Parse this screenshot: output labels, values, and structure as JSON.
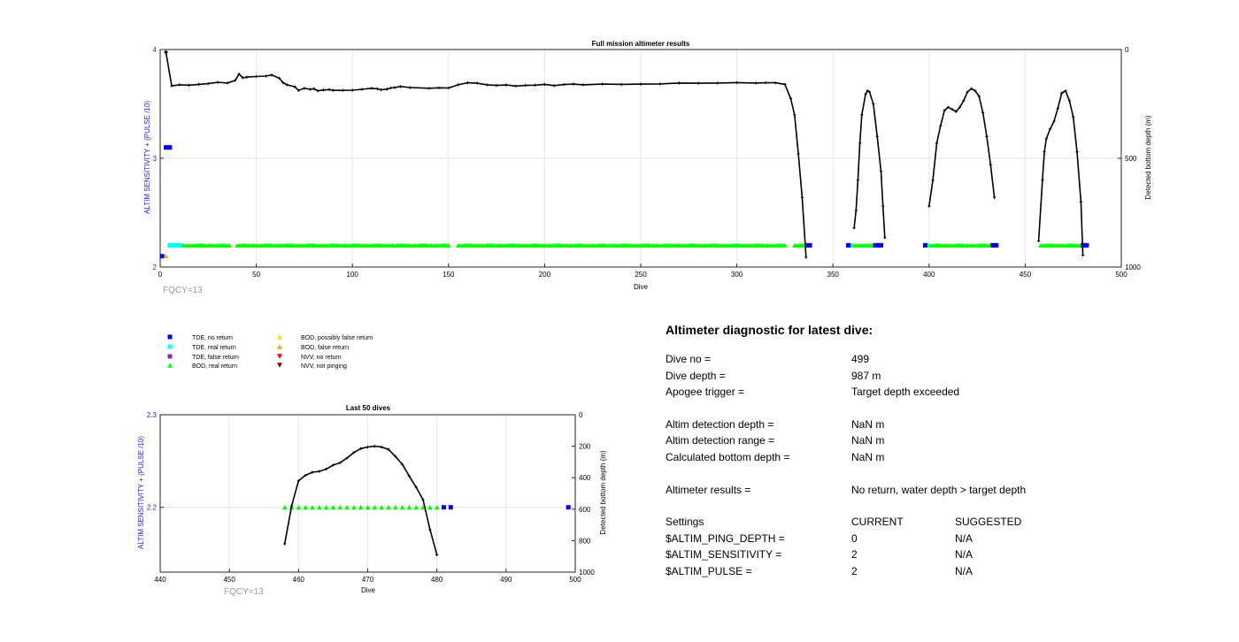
{
  "chart_data": [
    {
      "type": "scatter",
      "title": "Full mission altimeter results",
      "xlabel": "Dive",
      "ylabel": "ALTIM SENSITIVITY + (PULSE /10)",
      "y2label": "Detected bottom depth (m)",
      "xlim": [
        0,
        500
      ],
      "ylim": [
        2,
        4
      ],
      "y2lim": [
        0,
        1000
      ],
      "y2_reversed": true,
      "xticks": [
        0,
        50,
        100,
        150,
        200,
        250,
        300,
        350,
        400,
        450,
        500
      ],
      "yticks": [
        2,
        3,
        4
      ],
      "y2ticks": [
        0,
        500,
        1000
      ],
      "grid": true,
      "annotation": "FQCY=13",
      "colors": {
        "tde_no_return": "#0000ff",
        "tde_real_return": "#00ffff",
        "bod_real_return": "#00ff00",
        "bod_false_return": "#ffa500",
        "bottom_depth_line": "#000000"
      },
      "tde_no_return": [
        [
          1,
          2.1
        ],
        [
          3,
          3.1
        ],
        [
          4,
          3.1
        ],
        [
          5,
          3.1
        ],
        [
          337,
          2.2
        ],
        [
          338,
          2.2
        ],
        [
          358,
          2.2
        ],
        [
          372,
          2.2
        ],
        [
          373,
          2.2
        ],
        [
          374,
          2.2
        ],
        [
          375,
          2.2
        ],
        [
          398,
          2.2
        ],
        [
          433,
          2.2
        ],
        [
          434,
          2.2
        ],
        [
          435,
          2.2
        ],
        [
          480,
          2.2
        ],
        [
          481,
          2.2
        ],
        [
          482,
          2.2
        ]
      ],
      "tde_real_return": [
        [
          5,
          2.2
        ],
        [
          6,
          2.2
        ],
        [
          7,
          2.2
        ],
        [
          8,
          2.2
        ],
        [
          9,
          2.2
        ],
        [
          10,
          2.2
        ],
        [
          359,
          2.2
        ],
        [
          399,
          2.2
        ]
      ],
      "bod_false_return": [
        [
          3,
          2.1
        ]
      ],
      "bod_real_return_ranges": [
        [
          10,
          36
        ],
        [
          40,
          150
        ],
        [
          155,
          325
        ],
        [
          330,
          336
        ],
        [
          360,
          371
        ],
        [
          400,
          432
        ],
        [
          458,
          479
        ]
      ],
      "bod_real_return_level": 2.2,
      "bottom_depth": [
        [
          [
            3,
            12
          ],
          [
            6,
            167
          ],
          [
            10,
            162
          ],
          [
            15,
            164
          ],
          [
            20,
            160
          ],
          [
            25,
            157
          ],
          [
            30,
            151
          ],
          [
            35,
            154
          ],
          [
            39,
            142
          ],
          [
            41,
            113
          ],
          [
            43,
            130
          ],
          [
            45,
            127
          ],
          [
            50,
            124
          ],
          [
            55,
            122
          ],
          [
            58,
            117
          ],
          [
            62,
            132
          ],
          [
            64,
            153
          ],
          [
            66,
            162
          ],
          [
            70,
            171
          ],
          [
            72,
            188
          ],
          [
            75,
            178
          ],
          [
            78,
            183
          ],
          [
            80,
            180
          ],
          [
            82,
            190
          ],
          [
            85,
            186
          ],
          [
            88,
            184
          ],
          [
            90,
            188
          ],
          [
            95,
            188
          ],
          [
            100,
            187
          ],
          [
            105,
            183
          ],
          [
            110,
            178
          ],
          [
            113,
            181
          ],
          [
            115,
            185
          ],
          [
            118,
            182
          ],
          [
            120,
            177
          ],
          [
            122,
            175
          ],
          [
            125,
            170
          ],
          [
            130,
            175
          ],
          [
            140,
            178
          ],
          [
            145,
            176
          ],
          [
            150,
            177
          ],
          [
            155,
            162
          ],
          [
            160,
            153
          ],
          [
            165,
            155
          ],
          [
            170,
            162
          ],
          [
            175,
            165
          ],
          [
            180,
            163
          ],
          [
            185,
            168
          ],
          [
            190,
            165
          ],
          [
            195,
            164
          ],
          [
            200,
            160
          ],
          [
            205,
            166
          ],
          [
            210,
            161
          ],
          [
            215,
            159
          ],
          [
            220,
            162
          ],
          [
            230,
            159
          ],
          [
            240,
            160
          ],
          [
            250,
            159
          ],
          [
            260,
            158
          ],
          [
            270,
            154
          ],
          [
            280,
            155
          ],
          [
            290,
            154
          ],
          [
            300,
            152
          ],
          [
            310,
            154
          ],
          [
            315,
            153
          ],
          [
            320,
            153
          ],
          [
            325,
            160
          ],
          [
            328,
            225
          ],
          [
            330,
            300
          ],
          [
            332,
            480
          ],
          [
            334,
            680
          ],
          [
            336,
            955
          ]
        ],
        [
          [
            361,
            820
          ],
          [
            362,
            740
          ],
          [
            363,
            600
          ],
          [
            364,
            430
          ],
          [
            365,
            300
          ],
          [
            367,
            205
          ],
          [
            368,
            190
          ],
          [
            369,
            195
          ],
          [
            371,
            250
          ],
          [
            373,
            400
          ],
          [
            375,
            560
          ],
          [
            376,
            720
          ],
          [
            377,
            865
          ]
        ],
        [
          [
            400,
            720
          ],
          [
            402,
            600
          ],
          [
            404,
            430
          ],
          [
            406,
            350
          ],
          [
            408,
            280
          ],
          [
            410,
            265
          ],
          [
            412,
            275
          ],
          [
            414,
            285
          ],
          [
            416,
            265
          ],
          [
            418,
            235
          ],
          [
            420,
            195
          ],
          [
            422,
            180
          ],
          [
            424,
            190
          ],
          [
            426,
            215
          ],
          [
            428,
            290
          ],
          [
            430,
            400
          ],
          [
            432,
            530
          ],
          [
            434,
            680
          ]
        ],
        [
          [
            457,
            880
          ],
          [
            459,
            600
          ],
          [
            460,
            470
          ],
          [
            461,
            410
          ],
          [
            463,
            365
          ],
          [
            465,
            330
          ],
          [
            467,
            270
          ],
          [
            469,
            200
          ],
          [
            471,
            190
          ],
          [
            473,
            235
          ],
          [
            475,
            310
          ],
          [
            477,
            470
          ],
          [
            479,
            700
          ],
          [
            480,
            945
          ]
        ]
      ]
    },
    {
      "type": "scatter",
      "title": "Last 50 dives",
      "xlabel": "Dive",
      "ylabel": "ALTIM SENSITIVITY + (PULSE /10)",
      "y2label": "Detected bottom depth (m)",
      "xlim": [
        440,
        500
      ],
      "ylim": [
        2.13,
        2.3
      ],
      "y2lim": [
        0,
        1000
      ],
      "y2_reversed": true,
      "xticks": [
        440,
        450,
        460,
        470,
        480,
        490,
        500
      ],
      "yticks": [
        2.2,
        2.3
      ],
      "y2ticks": [
        0,
        200,
        400,
        600,
        800,
        1000
      ],
      "grid": true,
      "annotation": "FQCY=13",
      "tde_no_return": [
        [
          481,
          2.2
        ],
        [
          482,
          2.2
        ],
        [
          499,
          2.2
        ]
      ],
      "bod_real_return": [
        458,
        459,
        460,
        461,
        462,
        463,
        464,
        465,
        466,
        467,
        468,
        469,
        470,
        471,
        472,
        473,
        474,
        475,
        476,
        477,
        478,
        479,
        480
      ],
      "bod_real_return_level": 2.2,
      "bottom_depth": [
        [
          458,
          820
        ],
        [
          459,
          580
        ],
        [
          460,
          420
        ],
        [
          461,
          385
        ],
        [
          462,
          365
        ],
        [
          463,
          360
        ],
        [
          464,
          345
        ],
        [
          465,
          320
        ],
        [
          466,
          305
        ],
        [
          467,
          275
        ],
        [
          468,
          240
        ],
        [
          469,
          215
        ],
        [
          470,
          205
        ],
        [
          471,
          200
        ],
        [
          472,
          205
        ],
        [
          473,
          220
        ],
        [
          474,
          265
        ],
        [
          475,
          315
        ],
        [
          476,
          390
        ],
        [
          477,
          460
        ],
        [
          478,
          540
        ],
        [
          479,
          730
        ],
        [
          480,
          890
        ]
      ]
    }
  ],
  "legend": {
    "items": [
      {
        "label": "TDE, no return",
        "marker": "square",
        "color": "#0000ff"
      },
      {
        "label": "TDE, real return",
        "marker": "square",
        "color": "#00ffff"
      },
      {
        "label": "TDE, false return",
        "marker": "square",
        "color": "#7b2fbe"
      },
      {
        "label": "BOD, real return",
        "marker": "triangle-up",
        "color": "#00ff00"
      },
      {
        "label": "BOD, possibly false return",
        "marker": "triangle-up",
        "color": "#ffd700"
      },
      {
        "label": "BOD, false return",
        "marker": "triangle-up",
        "color": "#ffa500"
      },
      {
        "label": "NVV, no return",
        "marker": "triangle-down",
        "color": "#ff0000"
      },
      {
        "label": "NVV, not pinging",
        "marker": "triangle-down",
        "color": "#8b0000"
      }
    ]
  },
  "diagnostic": {
    "heading": "Altimeter diagnostic for latest dive:",
    "dive_no_label": "Dive no =",
    "dive_no_value": "499",
    "dive_depth_label": "Dive depth =",
    "dive_depth_value": "987 m",
    "apogee_label": "Apogee trigger =",
    "apogee_value": "Target depth exceeded",
    "det_depth_label": "Altim detection depth =",
    "det_depth_value": "NaN m",
    "det_range_label": "Altim detection range =",
    "det_range_value": "NaN m",
    "calc_depth_label": "Calculated bottom depth =",
    "calc_depth_value": "NaN m",
    "results_label": "Altimeter results =",
    "results_value": "No return, water depth > target depth",
    "settings_label": "Settings",
    "current_header": "CURRENT",
    "suggested_header": "SUGGESTED",
    "ping_depth_label": "$ALTIM_PING_DEPTH =",
    "ping_depth_current": "0",
    "ping_depth_suggested": "N/A",
    "sensitivity_label": "$ALTIM_SENSITIVITY =",
    "sensitivity_current": "2",
    "sensitivity_suggested": "N/A",
    "pulse_label": "$ALTIM_PULSE =",
    "pulse_current": "2",
    "pulse_suggested": "N/A"
  }
}
